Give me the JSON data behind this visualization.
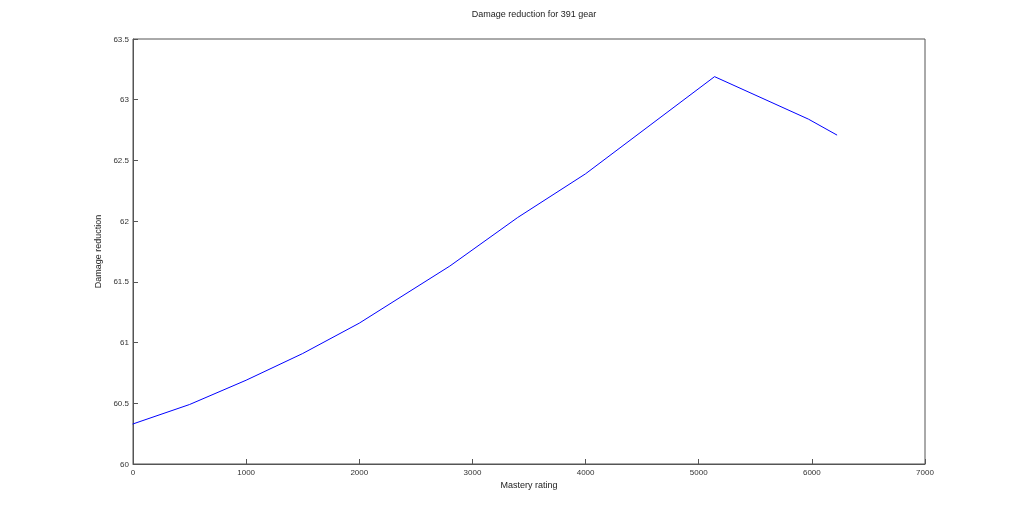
{
  "chart_data": {
    "type": "line",
    "title": "Damage reduction for 391 gear",
    "xlabel": "Mastery rating",
    "ylabel": "Damage reduction",
    "x": [
      0,
      500,
      1000,
      1500,
      2000,
      2800,
      3400,
      4000,
      4570,
      5140,
      5970,
      6220
    ],
    "series": [
      {
        "color": "#0000ff",
        "values": [
          60.33,
          60.49,
          60.69,
          60.91,
          61.16,
          61.63,
          62.03,
          62.39,
          62.79,
          63.19,
          62.84,
          62.71
        ]
      }
    ],
    "xlim": [
      0,
      7000
    ],
    "xticks": [
      0,
      1000,
      2000,
      3000,
      4000,
      5000,
      6000,
      7000
    ],
    "ylim": [
      60,
      63.5
    ],
    "yticks": [
      60,
      60.5,
      61,
      61.5,
      62,
      62.5,
      63,
      63.5
    ],
    "grid": false,
    "marker": "none",
    "line_style": "solid"
  }
}
